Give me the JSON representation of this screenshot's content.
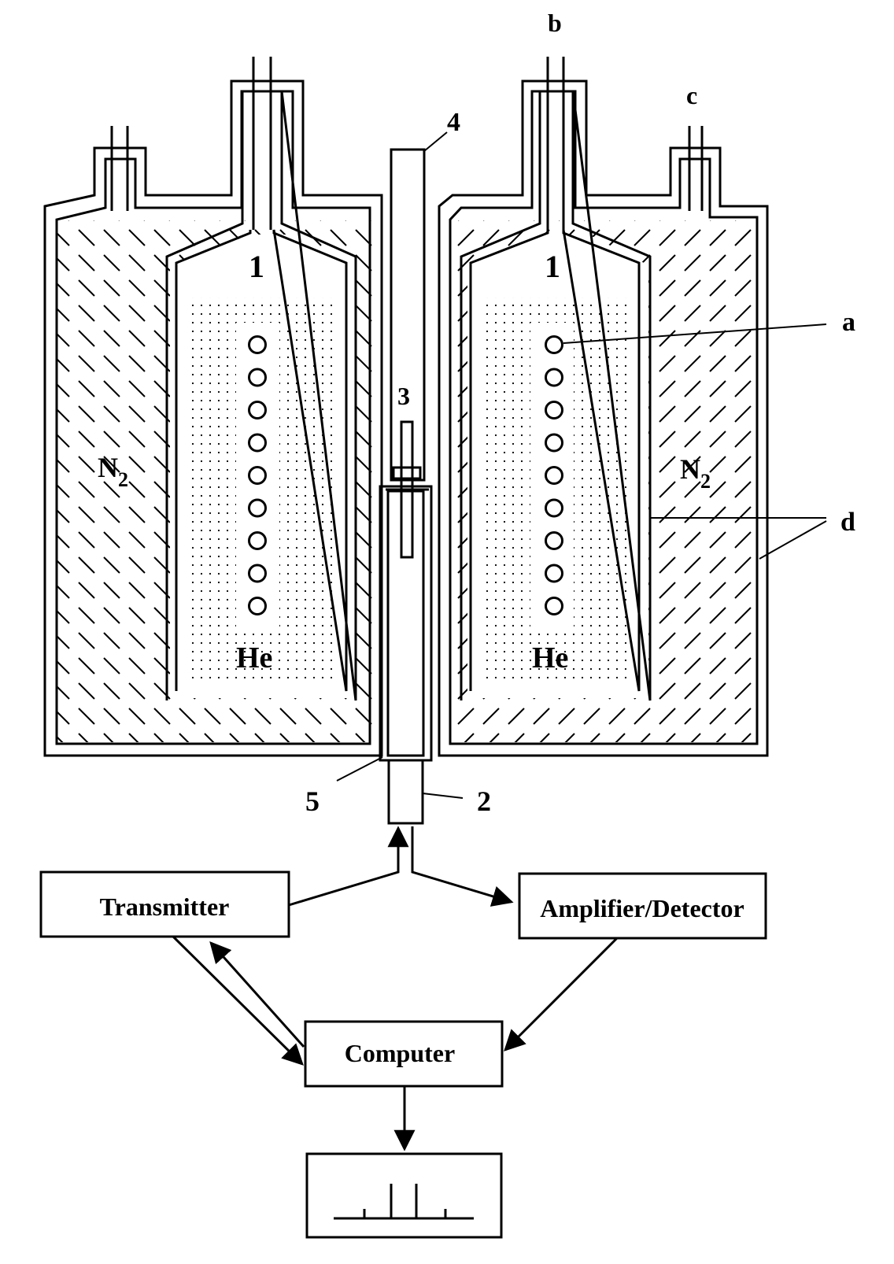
{
  "labels": {
    "b": "b",
    "c": "c",
    "a": "a",
    "d": "d",
    "n1": "1",
    "n2": "2",
    "n3": "3",
    "n4": "4",
    "n5": "5",
    "left_nitrogen": "N",
    "left_nitrogen_sub": "2",
    "right_nitrogen": "N",
    "right_nitrogen_sub": "2",
    "left_helium": "He",
    "right_helium": "He"
  },
  "blocks": {
    "transmitter": "Transmitter",
    "amplifier": "Amplifier/Detector",
    "computer": "Computer"
  },
  "coil_turns_per_side": 9
}
